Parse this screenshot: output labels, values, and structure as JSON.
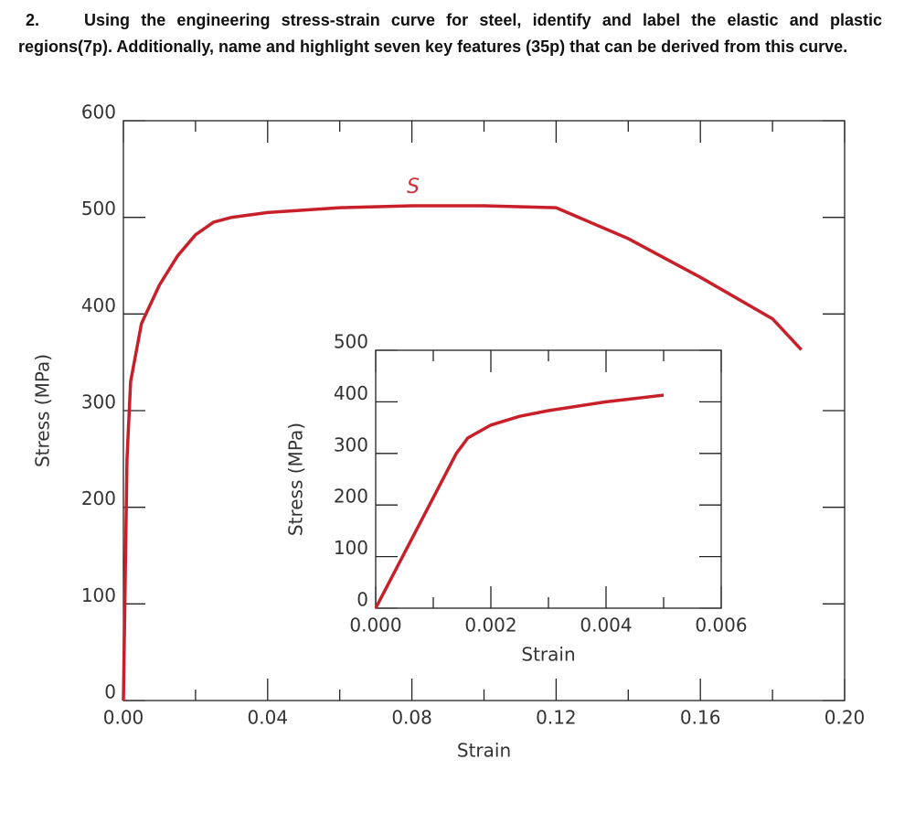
{
  "question": {
    "number": "2.",
    "text": "Using the engineering stress-strain curve for steel, identify and label the elastic and plastic regions(7p). Additionally, name and highlight seven key features (35p) that can be derived from this curve."
  },
  "chart_data": [
    {
      "type": "line",
      "xlabel": "Strain",
      "ylabel": "Stress (MPa)",
      "annotations": [
        "S"
      ],
      "xlim": [
        0,
        0.2
      ],
      "ylim": [
        0,
        600
      ],
      "xticks": [
        {
          "value": 0,
          "label": "0.00"
        },
        {
          "value": 0.04,
          "label": "0.04"
        },
        {
          "value": 0.08,
          "label": "0.08"
        },
        {
          "value": 0.12,
          "label": "0.12"
        },
        {
          "value": 0.16,
          "label": "0.16"
        },
        {
          "value": 0.2,
          "label": "0.20"
        }
      ],
      "xminorticks": [
        0.02,
        0.06,
        0.1,
        0.14,
        0.18
      ],
      "yticks": [
        0,
        100,
        200,
        300,
        400,
        500,
        600
      ],
      "series": [
        {
          "color": "#c8202a",
          "x": [
            0,
            0.001,
            0.002,
            0.003,
            0.005,
            0.01,
            0.015,
            0.02,
            0.025,
            0.03,
            0.04,
            0.06,
            0.08,
            0.1,
            0.12,
            0.14,
            0.16,
            0.18,
            0.188
          ],
          "values": [
            0,
            250,
            330,
            350,
            390,
            430,
            460,
            482,
            495,
            500,
            505,
            510,
            512,
            512,
            510,
            478,
            438,
            395,
            363
          ]
        }
      ]
    },
    {
      "type": "line",
      "xlabel": "Strain",
      "ylabel": "Stress (MPa)",
      "xlim": [
        0,
        0.006
      ],
      "ylim": [
        0,
        500
      ],
      "xticks": [
        {
          "value": 0,
          "label": "0.000"
        },
        {
          "value": 0.002,
          "label": "0.002"
        },
        {
          "value": 0.004,
          "label": "0.004"
        },
        {
          "value": 0.006,
          "label": "0.006"
        }
      ],
      "xminorticks": [
        0.001,
        0.003,
        0.005
      ],
      "yticks": [
        0,
        100,
        200,
        300,
        400,
        500
      ],
      "series": [
        {
          "color": "#c8202a",
          "x": [
            0,
            0.0014,
            0.0016,
            0.002,
            0.0025,
            0.003,
            0.004,
            0.005
          ],
          "values": [
            0,
            300,
            330,
            355,
            372,
            383,
            400,
            413
          ]
        }
      ]
    }
  ]
}
